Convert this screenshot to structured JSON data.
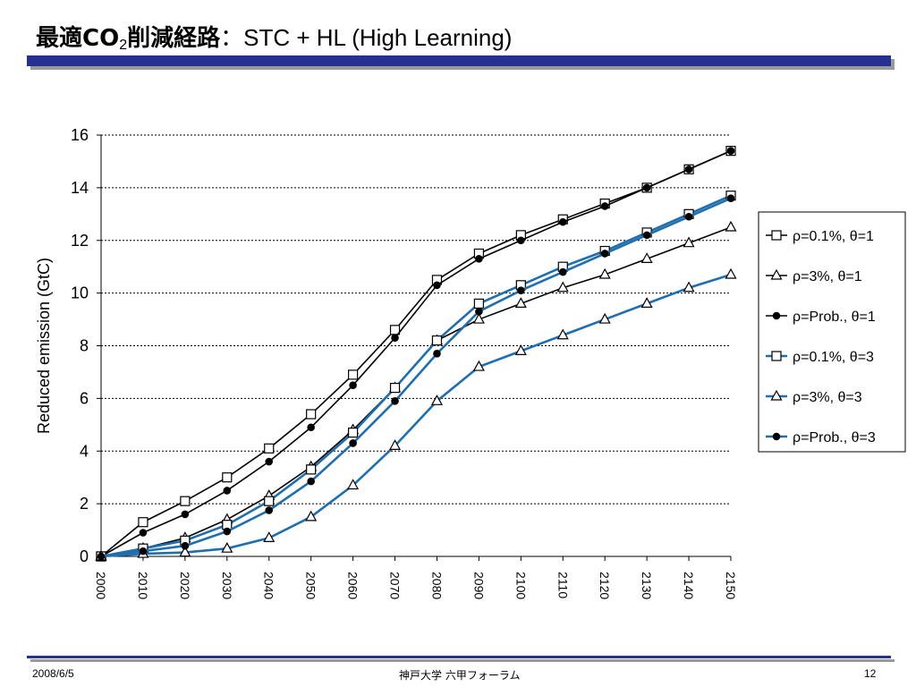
{
  "slide": {
    "title_jp_a": "最適CO",
    "title_sub": "2",
    "title_jp_b": "削減経路",
    "title_colon": "：",
    "title_en": "STC + HL (High Learning)",
    "footer_date": "2008/6/5",
    "footer_center": "神戸大学 六甲フォーラム",
    "footer_page": "12"
  },
  "colors": {
    "title_bar": "#26318f",
    "series_theta1": "#000000",
    "series_theta3": "#1f6fb0"
  },
  "chart_data": {
    "type": "line",
    "title": "",
    "xlabel": "",
    "ylabel": "Reduced emission (GtC)",
    "x": [
      2000,
      2010,
      2020,
      2030,
      2040,
      2050,
      2060,
      2070,
      2080,
      2090,
      2100,
      2110,
      2120,
      2130,
      2140,
      2150
    ],
    "xticklabels": [
      "2000",
      "2010",
      "2020",
      "2030",
      "2040",
      "2050",
      "2060",
      "2070",
      "2080",
      "2090",
      "2100",
      "2110",
      "2120",
      "2130",
      "2140",
      "2150"
    ],
    "ylim": [
      0,
      16
    ],
    "yticks": [
      0,
      2,
      4,
      6,
      8,
      10,
      12,
      14,
      16
    ],
    "grid": "horizontal dashed",
    "legend_position": "right",
    "series": [
      {
        "name": "ρ=0.1%, θ=1",
        "color": "#000000",
        "marker": "square",
        "values": [
          0,
          1.3,
          2.1,
          3.0,
          4.1,
          5.4,
          6.9,
          8.6,
          10.5,
          11.5,
          12.2,
          12.8,
          13.4,
          14.0,
          14.7,
          15.4
        ]
      },
      {
        "name": "ρ=3%, θ=1",
        "color": "#000000",
        "marker": "triangle",
        "values": [
          0,
          0.3,
          0.7,
          1.4,
          2.3,
          3.4,
          4.8,
          6.4,
          8.2,
          9.0,
          9.6,
          10.2,
          10.7,
          11.3,
          11.9,
          12.5
        ]
      },
      {
        "name": "ρ=Prob., θ=1",
        "color": "#000000",
        "marker": "circle",
        "values": [
          0,
          0.9,
          1.6,
          2.5,
          3.6,
          4.9,
          6.5,
          8.3,
          10.3,
          11.3,
          12.0,
          12.7,
          13.3,
          14.0,
          14.7,
          15.4
        ]
      },
      {
        "name": "ρ=0.1%, θ=3",
        "color": "#1f6fb0",
        "marker": "square",
        "values": [
          0,
          0.3,
          0.6,
          1.2,
          2.1,
          3.3,
          4.7,
          6.4,
          8.2,
          9.6,
          10.3,
          11.0,
          11.6,
          12.3,
          13.0,
          13.7
        ]
      },
      {
        "name": "ρ=3%, θ=3",
        "color": "#1f6fb0",
        "marker": "triangle",
        "values": [
          0,
          0.1,
          0.15,
          0.3,
          0.7,
          1.5,
          2.7,
          4.2,
          5.9,
          7.2,
          7.8,
          8.4,
          9.0,
          9.6,
          10.2,
          10.7
        ]
      },
      {
        "name": "ρ=Prob., θ=3",
        "color": "#1f6fb0",
        "marker": "circle",
        "values": [
          0,
          0.2,
          0.4,
          0.95,
          1.75,
          2.85,
          4.3,
          5.9,
          7.7,
          9.3,
          10.1,
          10.8,
          11.5,
          12.2,
          12.9,
          13.6
        ]
      }
    ]
  }
}
